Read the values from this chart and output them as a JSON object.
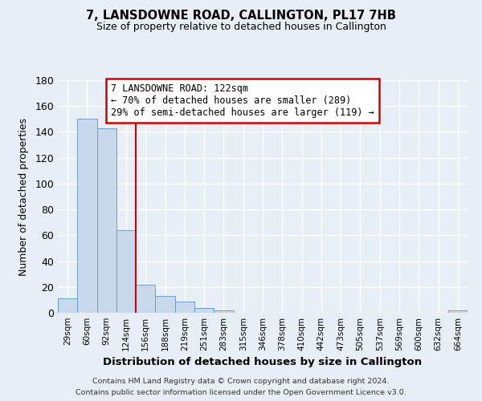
{
  "title": "7, LANSDOWNE ROAD, CALLINGTON, PL17 7HB",
  "subtitle": "Size of property relative to detached houses in Callington",
  "xlabel": "Distribution of detached houses by size in Callington",
  "ylabel": "Number of detached properties",
  "bar_color": "#c9d9ed",
  "bar_edge_color": "#6b9fc8",
  "background_color": "#e8eef5",
  "grid_color": "#ffffff",
  "bin_labels": [
    "29sqm",
    "60sqm",
    "92sqm",
    "124sqm",
    "156sqm",
    "188sqm",
    "219sqm",
    "251sqm",
    "283sqm",
    "315sqm",
    "346sqm",
    "378sqm",
    "410sqm",
    "442sqm",
    "473sqm",
    "505sqm",
    "537sqm",
    "569sqm",
    "600sqm",
    "632sqm",
    "664sqm"
  ],
  "bar_values": [
    11,
    150,
    143,
    64,
    22,
    13,
    9,
    4,
    2,
    0,
    0,
    0,
    0,
    0,
    0,
    0,
    0,
    0,
    0,
    0,
    2
  ],
  "property_line_bin_index": 3,
  "ylim": [
    0,
    180
  ],
  "yticks": [
    0,
    20,
    40,
    60,
    80,
    100,
    120,
    140,
    160,
    180
  ],
  "annotation_title": "7 LANSDOWNE ROAD: 122sqm",
  "annotation_line1": "← 70% of detached houses are smaller (289)",
  "annotation_line2": "29% of semi-detached houses are larger (119) →",
  "annotation_box_color": "#ffffff",
  "annotation_box_edge_color": "#cc0000",
  "red_line_color": "#cc0000",
  "footer_line1": "Contains HM Land Registry data © Crown copyright and database right 2024.",
  "footer_line2": "Contains public sector information licensed under the Open Government Licence v3.0."
}
